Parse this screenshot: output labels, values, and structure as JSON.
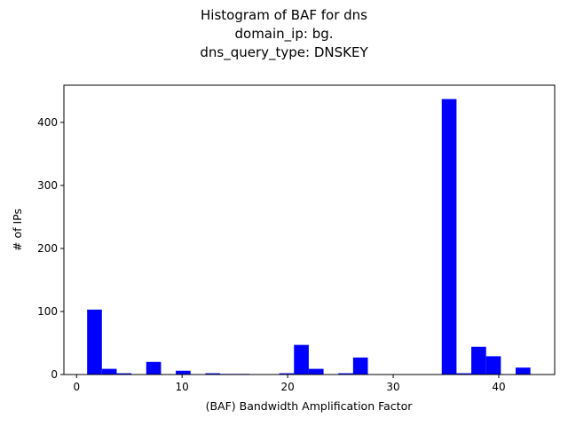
{
  "chart_data": {
    "type": "bar",
    "title_lines": [
      "Histogram of BAF for dns",
      "domain_ip: bg.",
      "dns_query_type: DNSKEY"
    ],
    "xlabel": "(BAF) Bandwidth Amplification Factor",
    "ylabel": "# of IPs",
    "xlim": [
      -1.2,
      45.3
    ],
    "ylim": [
      0,
      459
    ],
    "xticks": [
      0,
      10,
      20,
      30,
      40
    ],
    "yticks": [
      0,
      100,
      200,
      300,
      400
    ],
    "bar_color": "#0000ff",
    "series": [
      {
        "bins": [
          {
            "x0": 1.0,
            "x1": 2.4,
            "value": 103
          },
          {
            "x0": 2.4,
            "x1": 3.8,
            "value": 9
          },
          {
            "x0": 3.8,
            "x1": 5.2,
            "value": 2
          },
          {
            "x0": 6.6,
            "x1": 8.0,
            "value": 20
          },
          {
            "x0": 9.4,
            "x1": 10.8,
            "value": 6
          },
          {
            "x0": 12.2,
            "x1": 13.6,
            "value": 2
          },
          {
            "x0": 13.6,
            "x1": 15.0,
            "value": 1
          },
          {
            "x0": 15.0,
            "x1": 16.4,
            "value": 1
          },
          {
            "x0": 19.2,
            "x1": 20.6,
            "value": 2
          },
          {
            "x0": 20.6,
            "x1": 22.0,
            "value": 47
          },
          {
            "x0": 22.0,
            "x1": 23.4,
            "value": 9
          },
          {
            "x0": 24.8,
            "x1": 26.2,
            "value": 2
          },
          {
            "x0": 26.2,
            "x1": 27.6,
            "value": 27
          },
          {
            "x0": 34.6,
            "x1": 36.0,
            "value": 437
          },
          {
            "x0": 36.0,
            "x1": 37.4,
            "value": 2
          },
          {
            "x0": 37.4,
            "x1": 38.8,
            "value": 44
          },
          {
            "x0": 38.8,
            "x1": 40.2,
            "value": 29
          },
          {
            "x0": 41.6,
            "x1": 43.0,
            "value": 11
          }
        ]
      }
    ]
  }
}
